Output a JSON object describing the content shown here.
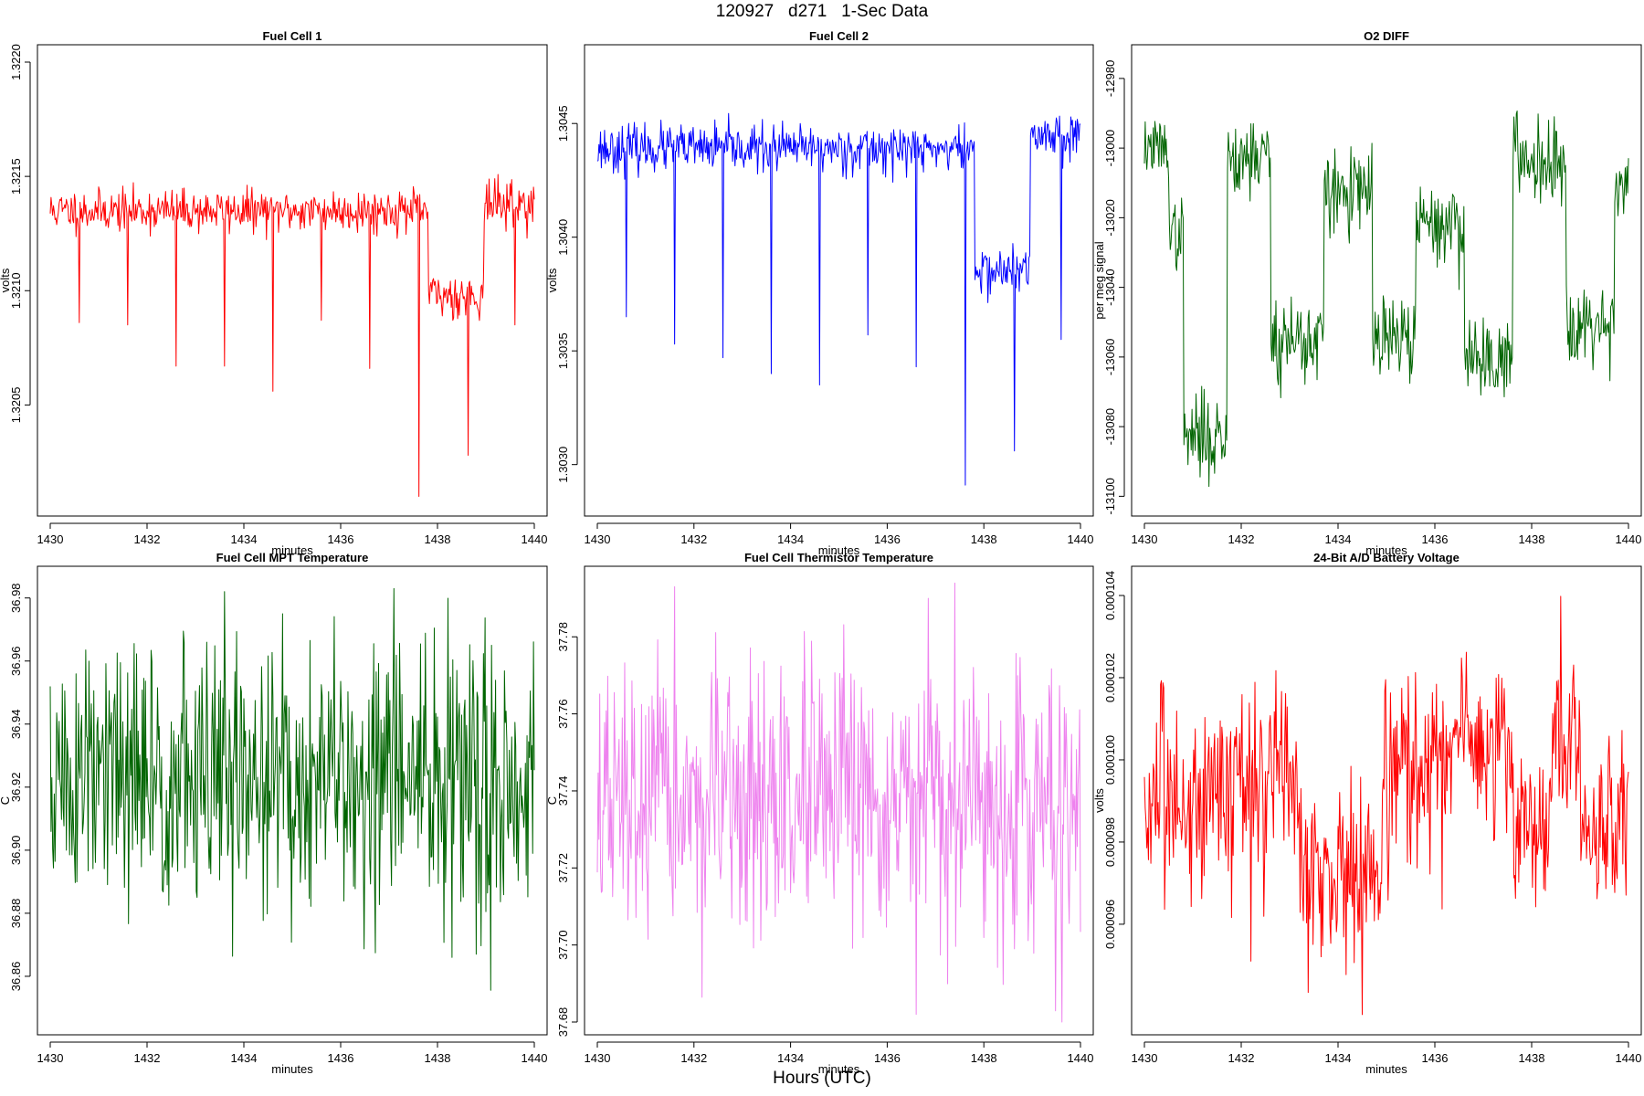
{
  "figure": {
    "title": "120927   d271   1-Sec Data",
    "xlabel": "Hours (UTC)"
  },
  "chart_data": [
    {
      "type": "line",
      "title": "Fuel Cell 1",
      "xlabel": "minutes",
      "ylabel": "volts",
      "color": "#ff0000",
      "xlim": [
        1430,
        1440
      ],
      "ylim": [
        1.32007,
        1.32202
      ],
      "xticks": [
        1430,
        1432,
        1434,
        1436,
        1438,
        1440
      ],
      "xtick_labels": [
        "1430",
        "1432",
        "1434",
        "1436",
        "1438",
        "1440"
      ],
      "yticks": [
        1.3205,
        1.321,
        1.3215,
        1.322
      ],
      "ytick_labels": [
        "1.3205",
        "1.3210",
        "1.3215",
        "1.3220"
      ],
      "segments": [
        [
          1430,
          1437.8,
          1.32135,
          4.5e-05
        ],
        [
          1437.8,
          1438.95,
          1.32098,
          5e-05
        ],
        [
          1438.95,
          1440,
          1.32138,
          5e-05
        ]
      ],
      "spikes": [
        [
          1430.6,
          1.32086
        ],
        [
          1431.6,
          1.32085
        ],
        [
          1432.6,
          1.32067
        ],
        [
          1433.6,
          1.32067
        ],
        [
          1434.6,
          1.32056
        ],
        [
          1435.6,
          1.32087
        ],
        [
          1436.6,
          1.32066
        ],
        [
          1437.62,
          1.3201
        ],
        [
          1438.63,
          1.32028
        ],
        [
          1439.6,
          1.32085
        ]
      ],
      "seed": 11
    },
    {
      "type": "line",
      "title": "Fuel Cell 2",
      "xlabel": "minutes",
      "ylabel": "volts",
      "color": "#0000ff",
      "xlim": [
        1430,
        1440
      ],
      "ylim": [
        1.30283,
        1.30479
      ],
      "xticks": [
        1430,
        1432,
        1434,
        1436,
        1438,
        1440
      ],
      "xtick_labels": [
        "1430",
        "1432",
        "1434",
        "1436",
        "1438",
        "1440"
      ],
      "yticks": [
        1.303,
        1.3035,
        1.304,
        1.3045
      ],
      "ytick_labels": [
        "1.3030",
        "1.3035",
        "1.3040",
        "1.3045"
      ],
      "segments": [
        [
          1430,
          1437.8,
          1.30439,
          5e-05
        ],
        [
          1437.8,
          1438.95,
          1.30385,
          5e-05
        ],
        [
          1438.95,
          1440,
          1.30445,
          5e-05
        ]
      ],
      "spikes": [
        [
          1430.6,
          1.30365
        ],
        [
          1431.6,
          1.30353
        ],
        [
          1432.6,
          1.30347
        ],
        [
          1433.6,
          1.3034
        ],
        [
          1434.6,
          1.30335
        ],
        [
          1435.6,
          1.30357
        ],
        [
          1436.6,
          1.30343
        ],
        [
          1437.62,
          1.30291
        ],
        [
          1438.63,
          1.30306
        ],
        [
          1439.6,
          1.30355
        ]
      ],
      "seed": 23
    },
    {
      "type": "line",
      "title": "O2 DIFF",
      "xlabel": "minutes",
      "ylabel": "per meg signal",
      "color": "#006400",
      "xlim": [
        1430,
        1440
      ],
      "ylim": [
        -13102,
        -12974
      ],
      "xticks": [
        1430,
        1432,
        1434,
        1436,
        1438,
        1440
      ],
      "xtick_labels": [
        "1430",
        "1432",
        "1434",
        "1436",
        "1438",
        "1440"
      ],
      "yticks": [
        -13100,
        -13080,
        -13060,
        -13040,
        -13020,
        -13000,
        -12980
      ],
      "ytick_labels": [
        "-13100",
        "-13080",
        "-13060",
        "-13040",
        "-13020",
        "-13000",
        "-12980"
      ],
      "segments": [
        [
          1430,
          1430.5,
          -13000,
          4
        ],
        [
          1430.5,
          1430.8,
          -13025,
          5
        ],
        [
          1430.8,
          1431.7,
          -13083,
          6
        ],
        [
          1431.7,
          1432.6,
          -13002,
          6
        ],
        [
          1432.6,
          1433.7,
          -13055,
          7
        ],
        [
          1433.7,
          1434.7,
          -13013,
          6
        ],
        [
          1434.7,
          1435.6,
          -13055,
          6
        ],
        [
          1435.6,
          1436.6,
          -13022,
          6
        ],
        [
          1436.6,
          1437.6,
          -13060,
          6
        ],
        [
          1437.6,
          1438.7,
          -13003,
          6
        ],
        [
          1438.7,
          1439.7,
          -13050,
          6
        ],
        [
          1439.7,
          1440,
          -13010,
          5
        ]
      ],
      "spikes": [],
      "seed": 37
    },
    {
      "type": "line",
      "title": "Fuel Cell MPT Temperature",
      "xlabel": "minutes",
      "ylabel": "C",
      "color": "#006400",
      "xlim": [
        1430,
        1440
      ],
      "ylim": [
        36.8455,
        36.986
      ],
      "xticks": [
        1430,
        1432,
        1434,
        1436,
        1438,
        1440
      ],
      "xtick_labels": [
        "1430",
        "1432",
        "1434",
        "1436",
        "1438",
        "1440"
      ],
      "yticks": [
        36.86,
        36.88,
        36.9,
        36.92,
        36.94,
        36.96,
        36.98
      ],
      "ytick_labels": [
        "36.86",
        "36.88",
        "36.90",
        "36.92",
        "36.94",
        "36.96",
        "36.98"
      ],
      "segments": [
        [
          1430,
          1440,
          36.922,
          0.022
        ]
      ],
      "spikes": [
        [
          1438.3,
          36.866
        ],
        [
          1438.8,
          36.867
        ],
        [
          1437.1,
          36.983
        ],
        [
          1433.6,
          36.982
        ]
      ],
      "seed": 51
    },
    {
      "type": "line",
      "title": "Fuel Cell Thermistor Temperature",
      "xlabel": "minutes",
      "ylabel": "C",
      "color": "#ee82ee",
      "xlim": [
        1430,
        1440
      ],
      "ylim": [
        37.68,
        37.795
      ],
      "xticks": [
        1430,
        1432,
        1434,
        1436,
        1438,
        1440
      ],
      "xtick_labels": [
        "1430",
        "1432",
        "1434",
        "1436",
        "1438",
        "1440"
      ],
      "yticks": [
        37.68,
        37.7,
        37.72,
        37.74,
        37.76,
        37.78
      ],
      "ytick_labels": [
        "37.68",
        "37.70",
        "37.72",
        "37.74",
        "37.76",
        "37.78"
      ],
      "segments": [
        [
          1430,
          1440,
          37.736,
          0.017
        ]
      ],
      "spikes": [
        [
          1431.6,
          37.793
        ],
        [
          1436.6,
          37.682
        ],
        [
          1436.85,
          37.79
        ]
      ],
      "seed": 67
    },
    {
      "type": "line",
      "title": "24-Bit A/D Battery Voltage",
      "xlabel": "minutes",
      "ylabel": "volts",
      "color": "#ff0000",
      "xlim": [
        1430,
        1440
      ],
      "ylim": [
        9.362e-05,
        0.0001044
      ],
      "xticks": [
        1430,
        1432,
        1434,
        1436,
        1438,
        1440
      ],
      "xtick_labels": [
        "1430",
        "1432",
        "1434",
        "1436",
        "1438",
        "1440"
      ],
      "yticks": [
        9.6e-05,
        9.8e-05,
        0.0001,
        0.000102,
        0.000104
      ],
      "ytick_labels": [
        "0.000096",
        "0.000098",
        "0.000100",
        "0.000102",
        "0.000104"
      ],
      "segments": [
        [
          1430,
          1431.2,
          9.89e-05,
          1.2e-06
        ],
        [
          1431.2,
          1432.3,
          9.95e-05,
          1.2e-06
        ],
        [
          1432.3,
          1433.2,
          9.93e-05,
          1.2e-06
        ],
        [
          1433.2,
          1434.9,
          9.73e-05,
          1.1e-06
        ],
        [
          1434.9,
          1436.3,
          9.97e-05,
          1.2e-06
        ],
        [
          1436.3,
          1437.6,
          0.0001004,
          1.1e-06
        ],
        [
          1437.6,
          1438.4,
          9.83e-05,
          1e-06
        ],
        [
          1438.4,
          1439.0,
          0.0001003,
          1.2e-06
        ],
        [
          1439.0,
          1440,
          9.84e-05,
          1.1e-06
        ]
      ],
      "spikes": [
        [
          1438.6,
          0.00010398
        ],
        [
          1434.5,
          9.38e-05
        ],
        [
          1432.2,
          9.51e-05
        ]
      ],
      "seed": 83
    }
  ]
}
